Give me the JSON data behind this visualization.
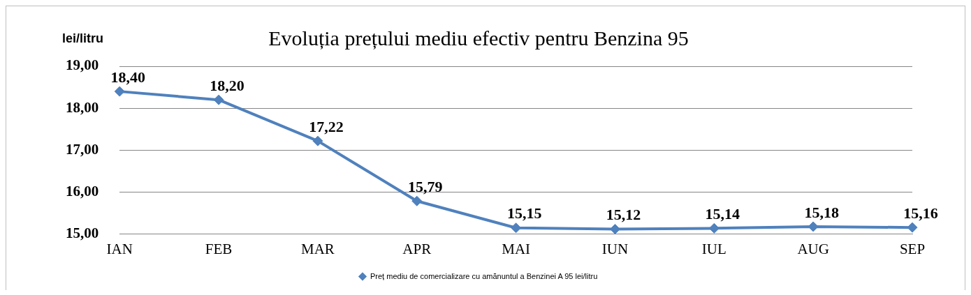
{
  "chart_data": {
    "type": "line",
    "title": "Evoluția prețului mediu efectiv pentru Benzina 95",
    "ylabel": "lei/litru",
    "categories": [
      "IAN",
      "FEB",
      "MAR",
      "APR",
      "MAI",
      "IUN",
      "IUL",
      "AUG",
      "SEP"
    ],
    "series": [
      {
        "name": "Preț mediu de comercializare cu amănuntul a Benzinei A 95 lei/litru",
        "color": "#4f81bd",
        "values": [
          18.4,
          18.2,
          17.22,
          15.79,
          15.15,
          15.12,
          15.14,
          15.18,
          15.16
        ],
        "value_labels": [
          "18,40",
          "18,20",
          "17,22",
          "15,79",
          "15,15",
          "15,12",
          "15,14",
          "15,18",
          "15,16"
        ]
      }
    ],
    "ylim": [
      15,
      19
    ],
    "yticks": [
      {
        "value": 15,
        "label": "15,00"
      },
      {
        "value": 16,
        "label": "16,00"
      },
      {
        "value": 17,
        "label": "17,00"
      },
      {
        "value": 18,
        "label": "18,00"
      },
      {
        "value": 19,
        "label": "19,00"
      }
    ],
    "grid": "y",
    "legend": "bottom",
    "marker": "diamond",
    "line_style": "solid"
  }
}
